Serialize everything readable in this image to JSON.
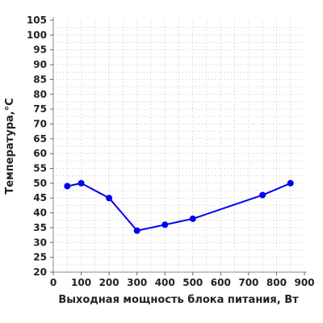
{
  "chart_data": {
    "type": "line",
    "title": "",
    "xlabel": "Выходная мощность блока питания, Вт",
    "ylabel": "Температура,°C",
    "xlim": [
      0,
      900
    ],
    "ylim": [
      20,
      105
    ],
    "x_ticks": [
      "0",
      "100",
      "200",
      "300",
      "400",
      "500",
      "600",
      "700",
      "800",
      "900"
    ],
    "y_ticks": [
      "20",
      "25",
      "30",
      "35",
      "40",
      "45",
      "50",
      "55",
      "60",
      "65",
      "70",
      "75",
      "80",
      "85",
      "90",
      "95",
      "100",
      "105"
    ],
    "grid": true,
    "series": [
      {
        "color": "#0000ee",
        "points": [
          {
            "x": 50,
            "y": 49
          },
          {
            "x": 100,
            "y": 50
          },
          {
            "x": 200,
            "y": 45
          },
          {
            "x": 300,
            "y": 34
          },
          {
            "x": 400,
            "y": 36
          },
          {
            "x": 500,
            "y": 38
          },
          {
            "x": 750,
            "y": 46
          },
          {
            "x": 850,
            "y": 50
          }
        ]
      }
    ]
  }
}
